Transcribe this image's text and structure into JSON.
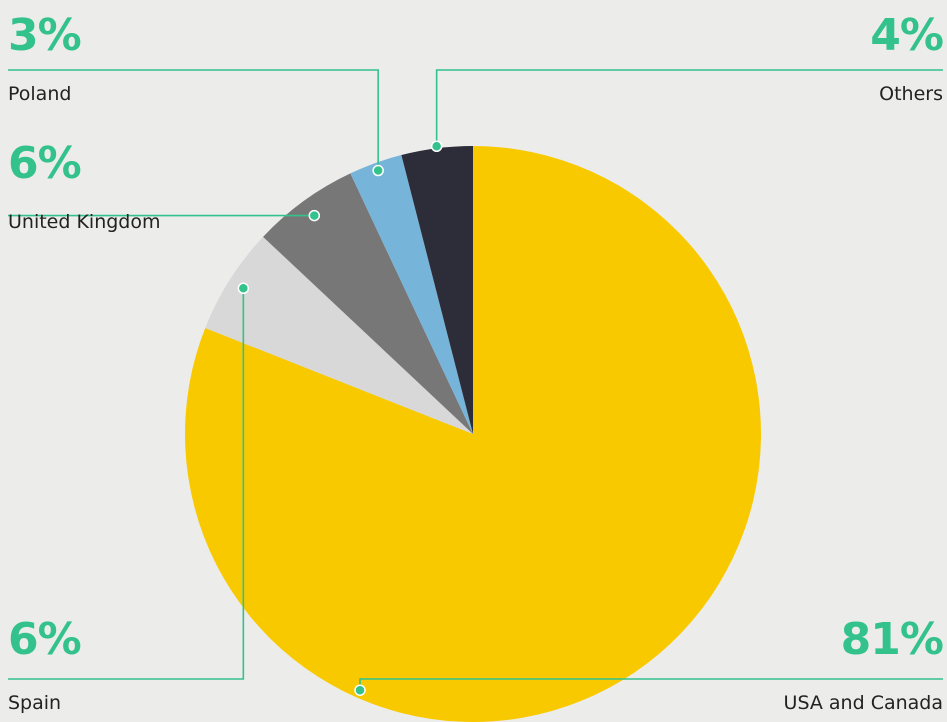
{
  "colors": {
    "background": "#ececeb",
    "accent": "#33c28c",
    "label_text": "#222222"
  },
  "chart_data": {
    "type": "pie",
    "start_angle_deg": 0,
    "direction": "clockwise",
    "slices": [
      {
        "label": "USA and Canada",
        "value": 81,
        "display": "81%",
        "color": "#f9c900"
      },
      {
        "label": "Spain",
        "value": 6,
        "display": "6%",
        "color": "#d7d8d7"
      },
      {
        "label": "United Kingdom",
        "value": 6,
        "display": "6%",
        "color": "#777778"
      },
      {
        "label": "Poland",
        "value": 3,
        "display": "3%",
        "color": "#76b4d9"
      },
      {
        "label": "Others",
        "value": 4,
        "display": "4%",
        "color": "#2d2d3a"
      }
    ]
  }
}
